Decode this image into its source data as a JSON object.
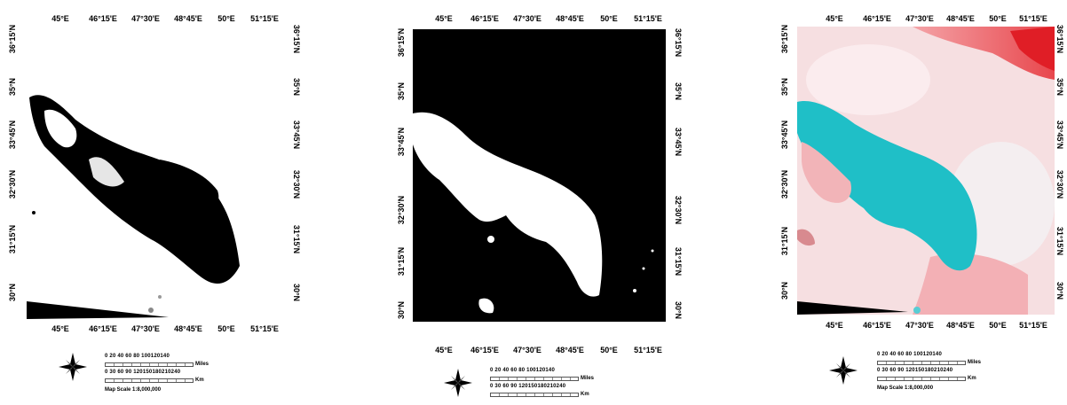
{
  "maps": [
    {
      "id": "map-1",
      "lon_ticks": [
        "45°E",
        "46°15'E",
        "47°30'E",
        "48°45'E",
        "50°E",
        "51°15'E"
      ],
      "lat_ticks": [
        "36°15'N",
        "35°N",
        "33°45'N",
        "32°30'N",
        "31°15'N",
        "30°N"
      ],
      "legend": {
        "miles_numbers": "0  20  40  60  80 100120140",
        "miles_unit": "Miles",
        "km_numbers": "0   30  60  90 120150180210240",
        "km_unit": "Km",
        "scale_text": "Map Scale 1:8,000,000"
      }
    },
    {
      "id": "map-2",
      "lon_ticks": [
        "45°E",
        "46°15'E",
        "47°30'E",
        "48°45'E",
        "50°E",
        "51°15'E"
      ],
      "lat_ticks": [
        "36°15'N",
        "35°N",
        "33°45'N",
        "32°30'N",
        "31°15'N",
        "30°N"
      ],
      "legend": {
        "miles_numbers": "0  20  40  60  80 100120140",
        "miles_unit": "Miles",
        "km_numbers": "0   30  60  90 120150180210240",
        "km_unit": "Km",
        "scale_text": ""
      }
    },
    {
      "id": "map-3",
      "lon_ticks": [
        "45°E",
        "46°15'E",
        "47°30'E",
        "48°45'E",
        "50°E",
        "51°15'E"
      ],
      "lat_ticks": [
        "36°15'N",
        "35°N",
        "33°45'N",
        "32°30'N",
        "31°15'N",
        "30°N"
      ],
      "legend": {
        "miles_numbers": "0  20  40  60  80 100120140",
        "miles_unit": "Miles",
        "km_numbers": "0   30  60  90 120150180210240",
        "km_unit": "Km",
        "scale_text": "Map Scale 1:8,000,000"
      }
    }
  ],
  "colors": {
    "wetland_mask": "#000000",
    "background_mask": "#ffffff",
    "false_color_land": "#f7d9dc",
    "false_color_water": "#1fbfc7",
    "false_color_red": "#e8474d"
  },
  "icons": [
    "north-arrow-compass-icon"
  ]
}
